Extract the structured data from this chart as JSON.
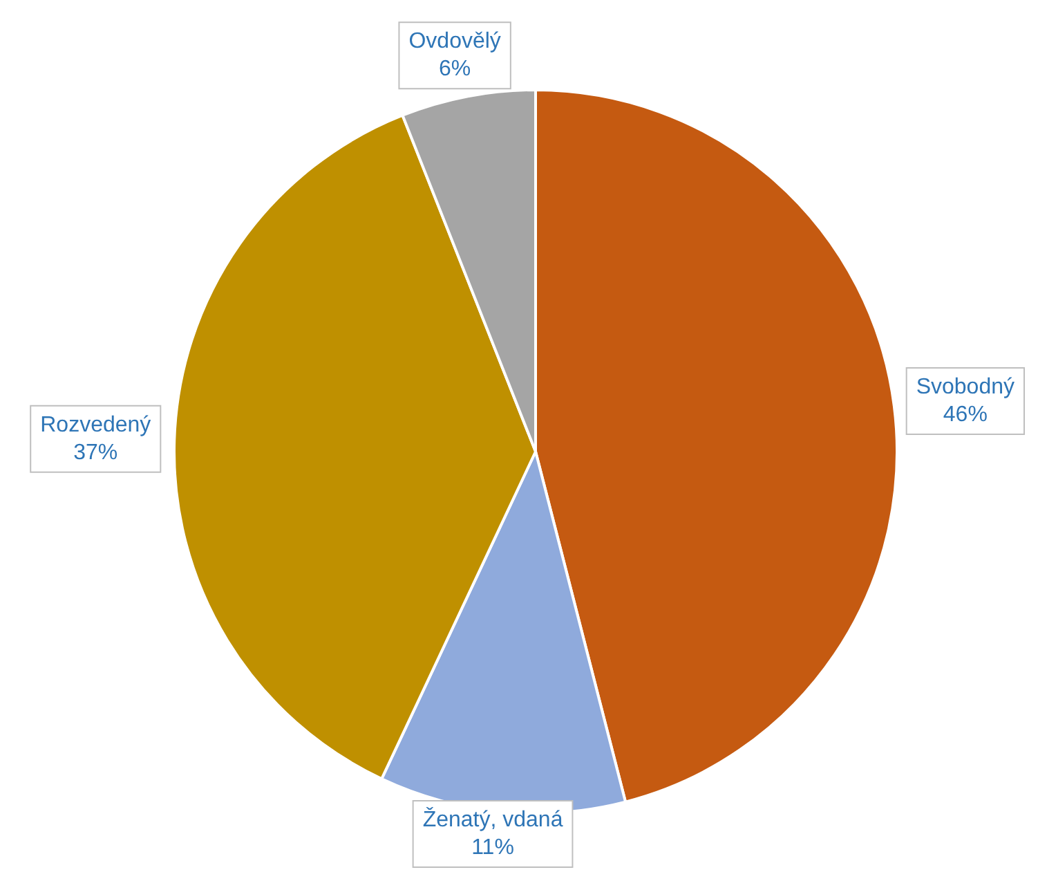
{
  "chart_data": {
    "type": "pie",
    "categories": [
      "Svobodný",
      "Ženatý, vdaná",
      "Rozvedený",
      "Ovdovělý"
    ],
    "values": [
      46,
      11,
      37,
      6
    ],
    "colors": [
      "#c55a11",
      "#8faadc",
      "#bf9000",
      "#a5a5a5"
    ],
    "value_labels": [
      "46%",
      "11%",
      "37%",
      "6%"
    ],
    "legend": false
  }
}
